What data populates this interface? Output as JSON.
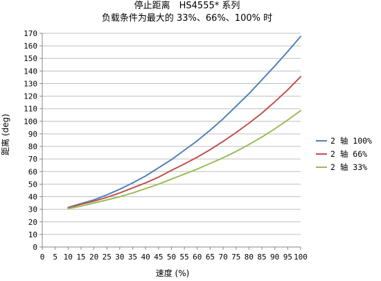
{
  "chart_data": {
    "type": "line",
    "title": "停止距离　HS4555* 系列",
    "subtitle": "负载条件为最大的 33%、66%、100% 时",
    "xlabel": "速度 (%)",
    "ylabel": "距离 (deg)",
    "xlim": [
      0,
      100
    ],
    "ylim": [
      0,
      170
    ],
    "x_ticks": [
      "0",
      "5",
      "10",
      "15",
      "20",
      "25",
      "30",
      "35",
      "40",
      "45",
      "50",
      "55",
      "60",
      "65",
      "70",
      "75",
      "80",
      "85",
      "90",
      "95",
      "100"
    ],
    "y_ticks": [
      "0",
      "10",
      "20",
      "30",
      "40",
      "50",
      "60",
      "70",
      "80",
      "90",
      "100",
      "110",
      "120",
      "130",
      "140",
      "150",
      "160",
      "170"
    ],
    "grid": "horizontal",
    "legend_position": "right",
    "x": [
      10,
      15,
      20,
      25,
      30,
      35,
      40,
      45,
      50,
      55,
      60,
      65,
      70,
      75,
      80,
      85,
      90,
      95,
      100
    ],
    "series": [
      {
        "name": "2 轴 100%",
        "color": "#4F81BD",
        "values": [
          31.5,
          34.5,
          37.5,
          41.5,
          46,
          51,
          56.5,
          63,
          69.5,
          77,
          84.5,
          93,
          102,
          112,
          122,
          133,
          144,
          155.5,
          167.5
        ]
      },
      {
        "name": "2 轴 66%",
        "color": "#C0504D",
        "values": [
          31,
          34,
          36.5,
          39.5,
          43,
          47,
          51,
          55.5,
          61,
          66,
          71.5,
          77.5,
          84,
          91,
          98.5,
          106.5,
          115.5,
          125,
          135.5
        ]
      },
      {
        "name": "2 轴 33%",
        "color": "#9BBB59",
        "values": [
          30.5,
          32.5,
          35,
          37.5,
          40,
          43,
          46.5,
          50,
          54,
          58,
          62,
          66.5,
          71,
          76,
          81.5,
          87.5,
          94,
          101,
          108.5
        ]
      }
    ]
  }
}
